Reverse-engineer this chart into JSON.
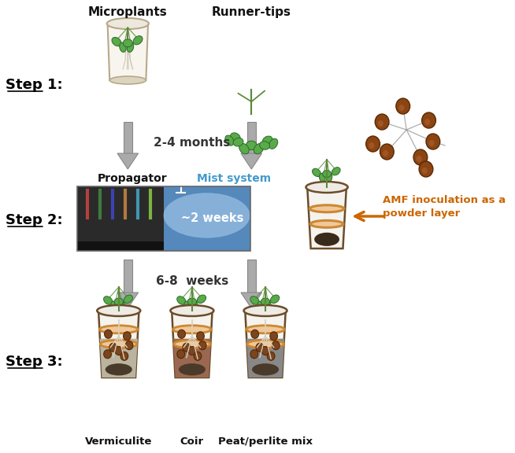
{
  "background_color": "#ffffff",
  "step1_label": "Step 1:",
  "step2_label": "Step 2:",
  "step3_label": "Step 3:",
  "microplants_label": "Microplants",
  "runner_tips_label": "Runner-tips",
  "months_label": "2-4 months",
  "propagator_label": "Propagator",
  "mist_system_label": "Mist system",
  "weeks2_label": "~2 weeks",
  "amf_label1": "AMF inoculation as a",
  "amf_label2": "powder layer",
  "weeks68_label": "6-8  weeks",
  "vermiculite_label": "Vermiculite",
  "coir_label": "Coir",
  "peat_label": "Peat/perlite mix",
  "amf_arrow_color": "#CC6600",
  "step_label_color": "#000000",
  "mist_color": "#4499CC",
  "amf_text_color": "#CC6600",
  "arrow_shaft_color": "#aaaaaa",
  "arrow_edge_color": "#888888"
}
